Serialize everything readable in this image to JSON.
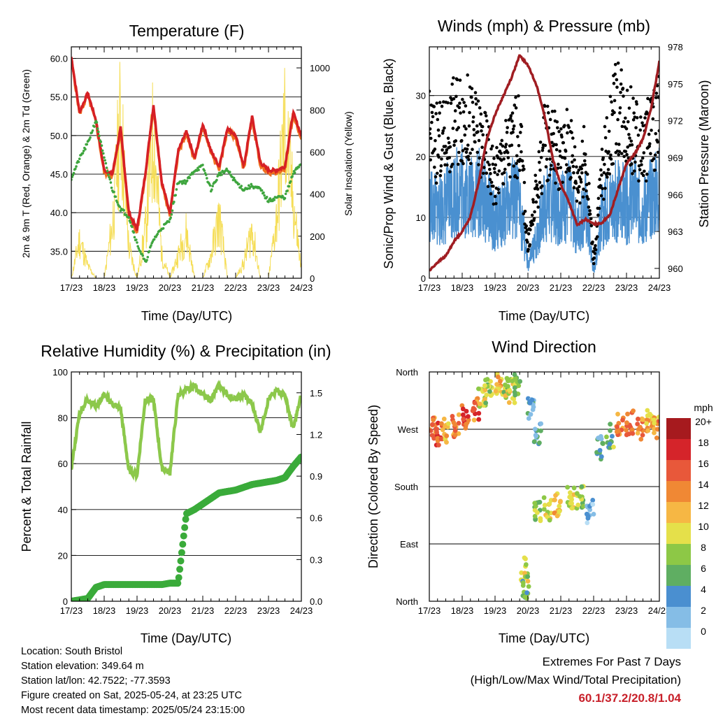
{
  "x_ticks": [
    "17/23",
    "18/23",
    "19/23",
    "20/23",
    "21/23",
    "22/23",
    "23/23",
    "24/23"
  ],
  "x_axis_label": "Time (Day/UTC)",
  "colors": {
    "temp_2m": "#d62025",
    "temp_9m": "#f07020",
    "dewpoint": "#3ea53e",
    "solar": "#f5dd55",
    "wind_sonic": "#4a90d0",
    "gust": "#000000",
    "pressure": "#a01d22",
    "rh": "#8cc84b",
    "rain": "#3aab3a",
    "extremes": "#c8202a"
  },
  "panels": {
    "temperature": {
      "title": "Temperature (F)",
      "left_label": "2m & 9m T (Red, Orange) & 2m Td (Green)",
      "right_label": "Solar Insolation (Yellow)"
    },
    "winds": {
      "title": "Winds (mph) & Pressure (mb)",
      "left_label": "Sonic/Prop Wind & Gust (Blue, Black)",
      "right_label": "Station Pressure (Maroon)"
    },
    "humidity": {
      "title": "Relative Humidity (%) & Precipitation (in)",
      "left_label": "Percent & Total Rainfall"
    },
    "direction": {
      "title": "Wind Direction",
      "left_label": "Direction (Colored By Speed)",
      "legend_title": "mph"
    }
  },
  "chart_data": [
    {
      "type": "line",
      "title": "Temperature (F)",
      "xlabel": "Time (Day/UTC)",
      "ylabel": "2m & 9m T (Red, Orange) & 2m Td (Green)",
      "y2label": "Solar Insolation (Yellow)",
      "x": [
        0,
        0.25,
        0.5,
        0.75,
        1,
        1.25,
        1.5,
        1.75,
        2,
        2.25,
        2.5,
        2.75,
        3,
        3.25,
        3.5,
        3.75,
        4,
        4.25,
        4.5,
        4.75,
        5,
        5.25,
        5.5,
        5.75,
        6,
        6.25,
        6.5,
        6.75,
        7
      ],
      "x_tick_labels": [
        "17/23",
        "18/23",
        "19/23",
        "20/23",
        "21/23",
        "22/23",
        "23/23",
        "24/23"
      ],
      "ylim": [
        31.5,
        61.5
      ],
      "yticks": [
        35.0,
        40.0,
        45.0,
        50.0,
        55.0,
        60.0
      ],
      "y2lim": [
        0,
        1100
      ],
      "y2ticks": [
        0,
        200,
        400,
        600,
        800,
        1000
      ],
      "series": [
        {
          "name": "2m T",
          "axis": "left",
          "values": [
            60.2,
            53,
            55.5,
            52,
            45.5,
            45,
            51,
            40,
            37.8,
            45,
            54,
            44,
            40,
            48,
            50.5,
            47,
            51.5,
            48,
            46,
            51,
            50,
            46,
            52.5,
            46.5,
            45.5,
            45.5,
            46,
            53,
            50
          ]
        },
        {
          "name": "9m T",
          "axis": "left",
          "values": [
            60,
            52.8,
            55.2,
            51.7,
            45.2,
            44.7,
            50.7,
            39.7,
            37.5,
            44.7,
            53.7,
            43.7,
            39.7,
            47.7,
            50.2,
            46.7,
            51.2,
            47.7,
            45.7,
            50.7,
            49.7,
            45.7,
            52.2,
            46.2,
            45.2,
            45.2,
            45.7,
            52.7,
            49.7
          ]
        },
        {
          "name": "2m Td",
          "axis": "left",
          "values": [
            44.5,
            47,
            49,
            52,
            47,
            43,
            40.5,
            39.5,
            36,
            33.5,
            36.5,
            38,
            39,
            44,
            44,
            45.5,
            46,
            43,
            45,
            45.5,
            44,
            43,
            43.5,
            43,
            41.5,
            42,
            42,
            45,
            46.5
          ]
        },
        {
          "name": "Solar Insolation",
          "axis": "right",
          "values": [
            0,
            250,
            80,
            0,
            0,
            350,
            1050,
            200,
            0,
            300,
            960,
            150,
            0,
            150,
            300,
            0,
            0,
            150,
            400,
            0,
            0,
            100,
            320,
            0,
            0,
            400,
            1000,
            500,
            50
          ]
        }
      ]
    },
    {
      "type": "scatter",
      "title": "Winds (mph) & Pressure (mb)",
      "xlabel": "Time (Day/UTC)",
      "ylabel": "Sonic/Prop Wind & Gust (Blue, Black)",
      "y2label": "Station Pressure (Maroon)",
      "x": [
        0,
        0.25,
        0.5,
        0.75,
        1,
        1.25,
        1.5,
        1.75,
        2,
        2.25,
        2.5,
        2.75,
        3,
        3.25,
        3.5,
        3.75,
        4,
        4.25,
        4.5,
        4.75,
        5,
        5.25,
        5.5,
        5.75,
        6,
        6.25,
        6.5,
        6.75,
        7
      ],
      "x_tick_labels": [
        "17/23",
        "18/23",
        "19/23",
        "20/23",
        "21/23",
        "22/23",
        "23/23",
        "24/23"
      ],
      "ylim": [
        0,
        38
      ],
      "yticks": [
        0,
        10,
        20,
        30
      ],
      "y2lim": [
        959.2,
        978
      ],
      "y2ticks": [
        960,
        963,
        966,
        969,
        972,
        975,
        978
      ],
      "series": [
        {
          "name": "Sonic/Prop Wind",
          "axis": "left",
          "values": [
            12,
            11,
            12,
            14,
            15,
            13,
            14,
            12,
            9,
            11,
            13,
            12,
            2,
            6,
            12,
            13,
            11,
            13,
            8,
            12,
            1,
            10,
            12,
            13,
            12,
            13,
            11,
            13,
            14
          ]
        },
        {
          "name": "Gust",
          "axis": "left",
          "values": [
            24,
            22,
            23,
            26,
            27,
            25,
            23,
            21,
            16,
            20,
            22,
            24,
            5,
            14,
            22,
            23,
            19,
            23,
            16,
            20,
            3,
            17,
            24,
            29,
            26,
            23,
            21,
            24,
            26
          ]
        },
        {
          "name": "Station Pressure",
          "axis": "right",
          "values": [
            959.8,
            960.5,
            961,
            962.2,
            963,
            964.2,
            967,
            970.5,
            972.5,
            974,
            975.5,
            977.3,
            976.5,
            975,
            972.5,
            969,
            966.8,
            965.4,
            963.5,
            964,
            963.6,
            963.7,
            964.4,
            966.5,
            968.5,
            969.3,
            970.5,
            973,
            976.8
          ]
        }
      ]
    },
    {
      "type": "line",
      "title": "Relative Humidity (%) & Precipitation (in)",
      "xlabel": "Time (Day/UTC)",
      "ylabel": "Percent & Total Rainfall",
      "x": [
        0,
        0.25,
        0.5,
        0.75,
        1,
        1.25,
        1.5,
        1.75,
        2,
        2.25,
        2.5,
        2.75,
        3,
        3.25,
        3.5,
        3.75,
        4,
        4.25,
        4.5,
        4.75,
        5,
        5.25,
        5.5,
        5.75,
        6,
        6.25,
        6.5,
        6.75,
        7
      ],
      "x_tick_labels": [
        "17/23",
        "18/23",
        "19/23",
        "20/23",
        "21/23",
        "22/23",
        "23/23",
        "24/23"
      ],
      "ylim": [
        0,
        100
      ],
      "yticks": [
        0,
        20,
        40,
        60,
        80,
        100
      ],
      "y2lim": [
        0,
        1.65
      ],
      "y2ticks": [
        0.0,
        0.3,
        0.6,
        0.9,
        1.2,
        1.5
      ],
      "series": [
        {
          "name": "Relative Humidity",
          "axis": "left",
          "values": [
            58,
            82,
            88,
            85,
            90,
            86,
            84,
            57,
            55,
            88,
            88,
            58,
            56,
            90,
            92,
            94,
            90,
            88,
            94,
            90,
            88,
            90,
            86,
            74,
            88,
            92,
            90,
            75,
            90
          ]
        },
        {
          "name": "Total Rainfall",
          "axis": "right",
          "values": [
            0,
            0.01,
            0.02,
            0.1,
            0.12,
            0.12,
            0.12,
            0.12,
            0.12,
            0.12,
            0.12,
            0.12,
            0.13,
            0.13,
            0.63,
            0.66,
            0.7,
            0.74,
            0.78,
            0.79,
            0.8,
            0.82,
            0.84,
            0.85,
            0.86,
            0.87,
            0.89,
            0.97,
            1.04
          ]
        }
      ]
    },
    {
      "type": "scatter",
      "title": "Wind Direction",
      "xlabel": "Time (Day/UTC)",
      "ylabel": "Direction (Colored By Speed)",
      "x_tick_labels": [
        "17/23",
        "18/23",
        "19/23",
        "20/23",
        "21/23",
        "22/23",
        "23/23",
        "24/23"
      ],
      "y_tick_labels": [
        "North",
        "East",
        "South",
        "West",
        "North"
      ],
      "ylim": [
        0,
        360
      ],
      "colorbar": {
        "title": "mph",
        "labels": [
          "0",
          "2",
          "4",
          "6",
          "8",
          "10",
          "12",
          "14",
          "16",
          "18",
          "20+"
        ],
        "colors": [
          "#b8def5",
          "#85bde6",
          "#4a8fd0",
          "#5fae62",
          "#8dc846",
          "#e5e04a",
          "#f6b744",
          "#f08834",
          "#e8583a",
          "#d5242a",
          "#a61a1e"
        ]
      },
      "points": [
        {
          "x": 0.1,
          "dir": 270,
          "spd": 14
        },
        {
          "x": 0.3,
          "dir": 262,
          "spd": 16
        },
        {
          "x": 0.5,
          "dir": 268,
          "spd": 12
        },
        {
          "x": 0.8,
          "dir": 275,
          "spd": 14
        },
        {
          "x": 1.1,
          "dir": 290,
          "spd": 16
        },
        {
          "x": 1.4,
          "dir": 300,
          "spd": 15
        },
        {
          "x": 1.6,
          "dir": 318,
          "spd": 10
        },
        {
          "x": 1.8,
          "dir": 330,
          "spd": 8
        },
        {
          "x": 2.1,
          "dir": 340,
          "spd": 12
        },
        {
          "x": 2.3,
          "dir": 335,
          "spd": 9
        },
        {
          "x": 2.5,
          "dir": 330,
          "spd": 10
        },
        {
          "x": 2.7,
          "dir": 342,
          "spd": 8
        },
        {
          "x": 2.9,
          "dir": 50,
          "spd": 10
        },
        {
          "x": 2.95,
          "dir": 20,
          "spd": 6
        },
        {
          "x": 3.1,
          "dir": 300,
          "spd": 3
        },
        {
          "x": 3.3,
          "dir": 260,
          "spd": 4
        },
        {
          "x": 3.3,
          "dir": 140,
          "spd": 8
        },
        {
          "x": 3.6,
          "dir": 145,
          "spd": 10
        },
        {
          "x": 3.9,
          "dir": 150,
          "spd": 12
        },
        {
          "x": 4.3,
          "dir": 160,
          "spd": 10
        },
        {
          "x": 4.6,
          "dir": 165,
          "spd": 8
        },
        {
          "x": 4.9,
          "dir": 140,
          "spd": 2
        },
        {
          "x": 5.2,
          "dir": 240,
          "spd": 5
        },
        {
          "x": 5.5,
          "dir": 260,
          "spd": 7
        },
        {
          "x": 5.8,
          "dir": 275,
          "spd": 14
        },
        {
          "x": 6.1,
          "dir": 280,
          "spd": 15
        },
        {
          "x": 6.4,
          "dir": 270,
          "spd": 14
        },
        {
          "x": 6.7,
          "dir": 285,
          "spd": 12
        },
        {
          "x": 6.9,
          "dir": 275,
          "spd": 13
        }
      ]
    }
  ],
  "info": {
    "location": "Location: South Bristol",
    "elevation": "Station elevation: 349.64 m",
    "latlon": "Station lat/lon: 42.7522; -77.3593",
    "created": "Figure created on Sat, 2025-05-24, at 23:25 UTC",
    "latest": "Most recent data timestamp: 2025/05/24 23:15:00"
  },
  "extremes": {
    "heading": "Extremes For Past 7 Days",
    "subheading": "(High/Low/Max Wind/Total Precipitation)",
    "values": "60.1/37.2/20.8/1.04"
  }
}
